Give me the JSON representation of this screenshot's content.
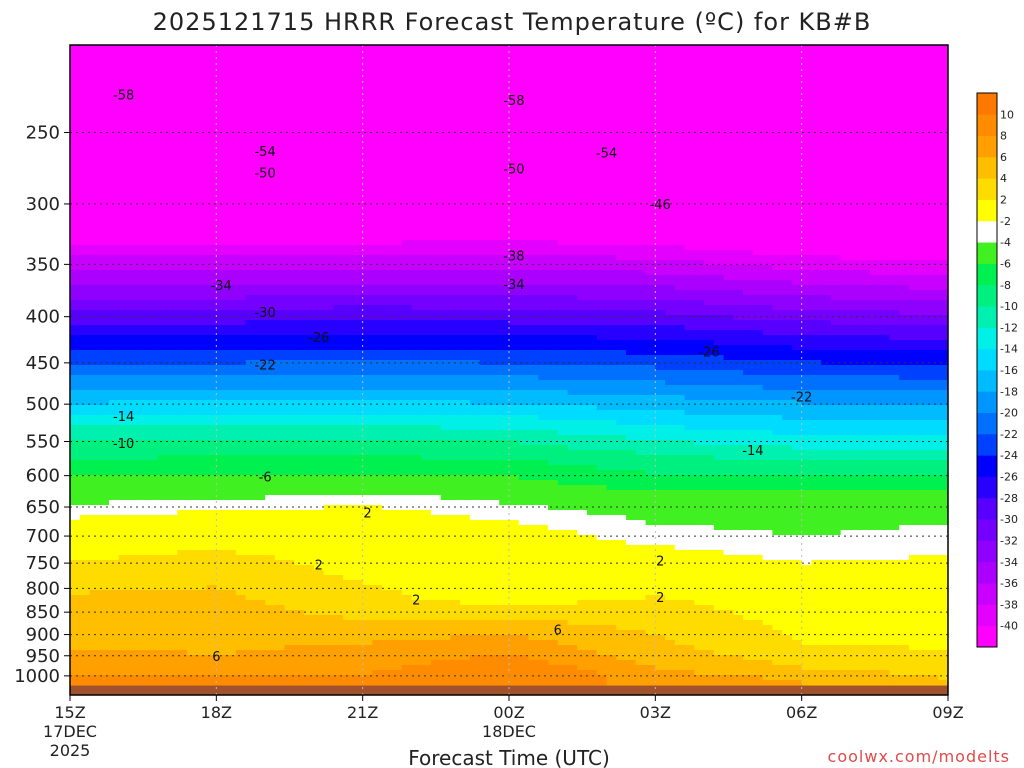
{
  "chart_data": {
    "type": "heatmap",
    "title": "2025121715 HRRR Forecast Temperature (ºC) for KB#B",
    "xlabel": "Forecast Time (UTC)",
    "ylabel": "",
    "credit": "coolwx.com/modelts",
    "x_hours": [
      0,
      18
    ],
    "x_ticks": [
      {
        "hour": 0,
        "label": "15Z",
        "label2": "17DEC",
        "label3": "2025"
      },
      {
        "hour": 3,
        "label": "18Z",
        "label2": "",
        "label3": ""
      },
      {
        "hour": 6,
        "label": "21Z",
        "label2": "",
        "label3": ""
      },
      {
        "hour": 9,
        "label": "00Z",
        "label2": "18DEC",
        "label3": ""
      },
      {
        "hour": 12,
        "label": "03Z",
        "label2": "",
        "label3": ""
      },
      {
        "hour": 15,
        "label": "06Z",
        "label2": "",
        "label3": ""
      },
      {
        "hour": 18,
        "label": "09Z",
        "label2": "",
        "label3": ""
      }
    ],
    "y_axis": {
      "scale": "log-pressure",
      "top_hPa": 200,
      "bottom_hPa": 1050
    },
    "y_ticks": [
      {
        "value": 250,
        "label": "250"
      },
      {
        "value": 300,
        "label": "300"
      },
      {
        "value": 350,
        "label": "350"
      },
      {
        "value": 400,
        "label": "400"
      },
      {
        "value": 450,
        "label": "450"
      },
      {
        "value": 500,
        "label": "500"
      },
      {
        "value": 550,
        "label": "550"
      },
      {
        "value": 600,
        "label": "600"
      },
      {
        "value": 650,
        "label": "650"
      },
      {
        "value": 700,
        "label": "700"
      },
      {
        "value": 750,
        "label": "750"
      },
      {
        "value": 800,
        "label": "800"
      },
      {
        "value": 850,
        "label": "850"
      },
      {
        "value": 900,
        "label": "900"
      },
      {
        "value": 950,
        "label": "950"
      },
      {
        "value": 1000,
        "label": "1000"
      }
    ],
    "surface_pressure_hPa": 1025,
    "surface_color": "#a0522d",
    "grid": true,
    "profiles": [
      {
        "hour": 0,
        "levels": [
          [
            225,
            -58
          ],
          [
            260,
            -54
          ],
          [
            275,
            -50
          ],
          [
            300,
            -46
          ],
          [
            320,
            -42
          ],
          [
            343,
            -38
          ],
          [
            370,
            -34
          ],
          [
            393,
            -30
          ],
          [
            420,
            -26
          ],
          [
            450,
            -22
          ],
          [
            483,
            -18
          ],
          [
            513,
            -14
          ],
          [
            548,
            -10
          ],
          [
            602,
            -6
          ],
          [
            645,
            -4
          ],
          [
            680,
            -1
          ],
          [
            770,
            3
          ],
          [
            850,
            5
          ],
          [
            930,
            6
          ],
          [
            1000,
            8
          ]
        ]
      },
      {
        "hour": 3,
        "levels": [
          [
            225,
            -58
          ],
          [
            257,
            -54
          ],
          [
            275,
            -50
          ],
          [
            298,
            -46
          ],
          [
            320,
            -42
          ],
          [
            343,
            -38
          ],
          [
            370,
            -34
          ],
          [
            393,
            -30
          ],
          [
            420,
            -26
          ],
          [
            450,
            -22
          ],
          [
            482,
            -18
          ],
          [
            513,
            -14
          ],
          [
            545,
            -10
          ],
          [
            598,
            -6
          ],
          [
            640,
            -4
          ],
          [
            665,
            -1
          ],
          [
            745,
            3
          ],
          [
            850,
            5
          ],
          [
            950,
            6
          ],
          [
            1000,
            8
          ]
        ]
      },
      {
        "hour": 6,
        "levels": [
          [
            225,
            -58
          ],
          [
            257,
            -54
          ],
          [
            275,
            -50
          ],
          [
            298,
            -46
          ],
          [
            320,
            -42
          ],
          [
            343,
            -38
          ],
          [
            367,
            -34
          ],
          [
            390,
            -30
          ],
          [
            418,
            -26
          ],
          [
            448,
            -22
          ],
          [
            480,
            -18
          ],
          [
            512,
            -14
          ],
          [
            545,
            -10
          ],
          [
            598,
            -6
          ],
          [
            630,
            -4
          ],
          [
            658,
            -1
          ],
          [
            790,
            2
          ],
          [
            840,
            3
          ],
          [
            920,
            6
          ],
          [
            1000,
            8
          ]
        ]
      },
      {
        "hour": 9,
        "levels": [
          [
            225,
            -58
          ],
          [
            257,
            -54
          ],
          [
            275,
            -50
          ],
          [
            298,
            -46
          ],
          [
            320,
            -42
          ],
          [
            340,
            -38
          ],
          [
            367,
            -34
          ],
          [
            392,
            -30
          ],
          [
            420,
            -26
          ],
          [
            450,
            -22
          ],
          [
            482,
            -18
          ],
          [
            515,
            -14
          ],
          [
            550,
            -10
          ],
          [
            600,
            -6
          ],
          [
            645,
            -4
          ],
          [
            690,
            -1
          ],
          [
            820,
            1
          ],
          [
            850,
            3
          ],
          [
            900,
            6
          ],
          [
            990,
            10
          ]
        ]
      },
      {
        "hour": 12,
        "levels": [
          [
            228,
            -58
          ],
          [
            260,
            -54
          ],
          [
            277,
            -50
          ],
          [
            298,
            -46
          ],
          [
            322,
            -42
          ],
          [
            345,
            -38
          ],
          [
            370,
            -34
          ],
          [
            395,
            -30
          ],
          [
            423,
            -26
          ],
          [
            455,
            -22
          ],
          [
            490,
            -18
          ],
          [
            528,
            -14
          ],
          [
            568,
            -10
          ],
          [
            625,
            -6
          ],
          [
            680,
            -4
          ],
          [
            735,
            -1
          ],
          [
            780,
            1
          ],
          [
            850,
            3
          ],
          [
            950,
            5
          ],
          [
            1005,
            7
          ]
        ]
      },
      {
        "hour": 15,
        "levels": [
          [
            230,
            -58
          ],
          [
            262,
            -54
          ],
          [
            283,
            -50
          ],
          [
            305,
            -46
          ],
          [
            330,
            -42
          ],
          [
            355,
            -38
          ],
          [
            380,
            -34
          ],
          [
            405,
            -30
          ],
          [
            433,
            -26
          ],
          [
            465,
            -22
          ],
          [
            498,
            -18
          ],
          [
            540,
            -14
          ],
          [
            578,
            -10
          ],
          [
            620,
            -6
          ],
          [
            700,
            -4
          ],
          [
            775,
            -1
          ],
          [
            840,
            1
          ],
          [
            920,
            2
          ],
          [
            980,
            4
          ],
          [
            1010,
            6
          ]
        ]
      },
      {
        "hour": 18,
        "levels": [
          [
            232,
            -58
          ],
          [
            268,
            -54
          ],
          [
            288,
            -50
          ],
          [
            310,
            -46
          ],
          [
            335,
            -42
          ],
          [
            360,
            -38
          ],
          [
            385,
            -34
          ],
          [
            410,
            -30
          ],
          [
            437,
            -26
          ],
          [
            468,
            -22
          ],
          [
            500,
            -18
          ],
          [
            542,
            -14
          ],
          [
            580,
            -10
          ],
          [
            620,
            -6
          ],
          [
            680,
            -4
          ],
          [
            762,
            -1
          ],
          [
            800,
            1
          ],
          [
            860,
            1
          ],
          [
            940,
            2
          ],
          [
            1010,
            4
          ]
        ]
      }
    ],
    "contour_labels": [
      {
        "hour": 1.1,
        "p": 227,
        "label": "-58"
      },
      {
        "hour": 9.1,
        "p": 230,
        "label": "-58"
      },
      {
        "hour": 4.0,
        "p": 262,
        "label": "-54"
      },
      {
        "hour": 11.0,
        "p": 263,
        "label": "-54"
      },
      {
        "hour": 4.0,
        "p": 277,
        "label": "-50"
      },
      {
        "hour": 9.1,
        "p": 274,
        "label": "-50"
      },
      {
        "hour": 12.1,
        "p": 300,
        "label": "-46"
      },
      {
        "hour": 9.1,
        "p": 342,
        "label": "-38"
      },
      {
        "hour": 3.1,
        "p": 369,
        "label": "-34"
      },
      {
        "hour": 9.1,
        "p": 368,
        "label": "-34"
      },
      {
        "hour": 4.0,
        "p": 395,
        "label": "-30"
      },
      {
        "hour": 5.1,
        "p": 421,
        "label": "-26"
      },
      {
        "hour": 13.1,
        "p": 437,
        "label": "-26"
      },
      {
        "hour": 4.0,
        "p": 452,
        "label": "-22"
      },
      {
        "hour": 15.0,
        "p": 490,
        "label": "-22"
      },
      {
        "hour": 1.1,
        "p": 515,
        "label": "-14"
      },
      {
        "hour": 14.0,
        "p": 562,
        "label": "-14"
      },
      {
        "hour": 1.1,
        "p": 552,
        "label": "-10"
      },
      {
        "hour": 4.0,
        "p": 601,
        "label": "-6"
      },
      {
        "hour": 6.1,
        "p": 659,
        "label": "2"
      },
      {
        "hour": 5.1,
        "p": 753,
        "label": "2"
      },
      {
        "hour": 7.1,
        "p": 823,
        "label": "2"
      },
      {
        "hour": 12.1,
        "p": 745,
        "label": "2"
      },
      {
        "hour": 12.1,
        "p": 818,
        "label": "2"
      },
      {
        "hour": 10.0,
        "p": 888,
        "label": "6"
      },
      {
        "hour": 3.0,
        "p": 950,
        "label": "6"
      }
    ],
    "colorbar": {
      "levels": [
        -40,
        -38,
        -36,
        -34,
        -32,
        -30,
        -28,
        -26,
        -24,
        -22,
        -20,
        -18,
        -16,
        -14,
        -12,
        -10,
        -8,
        -6,
        -4,
        -2,
        2,
        4,
        6,
        8,
        10
      ],
      "tick_labels": [
        "-40",
        "-38",
        "-36",
        "-34",
        "-32",
        "-30",
        "-28",
        "-26",
        "-24",
        "-22",
        "-20",
        "-18",
        "-16",
        "-14",
        "-12",
        "-10",
        "-8",
        "-6",
        "-4",
        "-2",
        "2",
        "4",
        "6",
        "8",
        "10"
      ],
      "colors": [
        "#ff00ff",
        "#e400ff",
        "#c800ff",
        "#ac00ff",
        "#9000ff",
        "#7400ff",
        "#5800ff",
        "#2800ff",
        "#0000ff",
        "#0040ff",
        "#0070ff",
        "#0096ff",
        "#00bcff",
        "#00dcff",
        "#00f0e8",
        "#00f0b0",
        "#00f080",
        "#00f050",
        "#40f020",
        "#ffffff",
        "#ffff00",
        "#ffdc00",
        "#ffbe00",
        "#ffa000",
        "#ff8c00",
        "#ff7800"
      ]
    }
  }
}
